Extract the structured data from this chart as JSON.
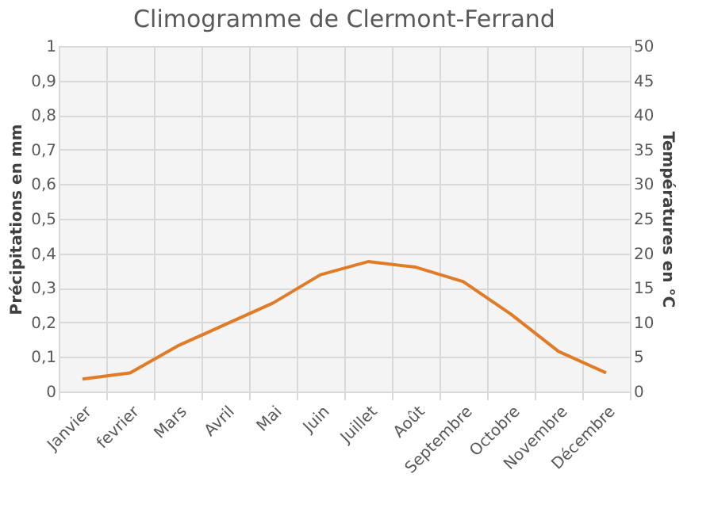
{
  "chart_data": {
    "type": "line",
    "title": "Climogramme de Clermont-Ferrand",
    "ylabel": "Précipitations en mm",
    "y2label": "Températures en °C",
    "categories": [
      "Janvier",
      "fevrier",
      "Mars",
      "Avril",
      "Mai",
      "Juin",
      "Juillet",
      "Août",
      "Septembre",
      "Octobre",
      "Novembre",
      "Décembre"
    ],
    "series": [
      {
        "color": "#e07b28",
        "axis": "y2",
        "values": [
          1.8,
          2.7,
          6.6,
          9.7,
          12.8,
          16.9,
          18.8,
          18,
          15.9,
          11.2,
          5.8,
          2.7
        ]
      }
    ],
    "ylim": [
      0,
      1
    ],
    "yticks": [
      0,
      {
        "value": 0.1,
        "label": "0,1"
      },
      {
        "value": 0.2,
        "label": "0,2"
      },
      {
        "value": 0.3,
        "label": "0,3"
      },
      {
        "value": 0.4,
        "label": "0,4"
      },
      {
        "value": 0.5,
        "label": "0,5"
      },
      {
        "value": 0.6,
        "label": "0,6"
      },
      {
        "value": 0.7,
        "label": "0,7"
      },
      {
        "value": 0.8,
        "label": "0,8"
      },
      {
        "value": 0.9,
        "label": "0,9"
      },
      1
    ],
    "y2lim": [
      0,
      50
    ],
    "y2ticks": [
      0,
      5,
      10,
      15,
      20,
      25,
      30,
      35,
      40,
      45,
      50
    ],
    "grid": true,
    "marker": "none",
    "line_style": "solid"
  }
}
